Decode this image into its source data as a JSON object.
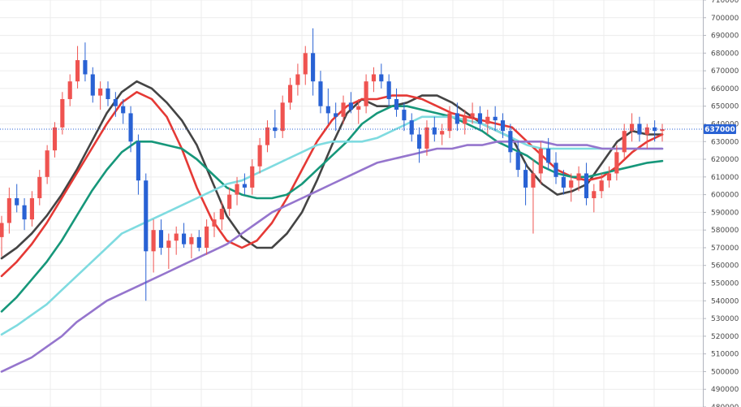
{
  "chart_data": {
    "type": "candlestick",
    "title": "",
    "xlabel": "",
    "ylabel": "",
    "ylim": [
      480000,
      710000
    ],
    "y_ticks": [
      480000,
      490000,
      500000,
      510000,
      520000,
      530000,
      540000,
      550000,
      560000,
      570000,
      580000,
      590000,
      600000,
      610000,
      620000,
      630000,
      640000,
      650000,
      660000,
      670000,
      680000,
      690000,
      700000,
      710000
    ],
    "y_tick_labels": [
      "480000",
      "490000",
      "500000",
      "510000",
      "520000",
      "530000",
      "540000",
      "550000",
      "560000",
      "570000",
      "580000",
      "590000",
      "600000",
      "610000",
      "620000",
      "630000",
      "640000",
      "650000",
      "660000",
      "670000",
      "680000",
      "690000",
      "700000",
      "710000"
    ],
    "grid": true,
    "last_price": 637000,
    "last_price_label": "637000",
    "colors": {
      "up": "#ef5350",
      "down": "#2962d4",
      "grid": "#ececec",
      "axis": "#b2b5be",
      "price_line": "#2962d4",
      "price_tag": "#2962d4"
    },
    "candles": [
      [
        576000,
        588000,
        565000,
        584000
      ],
      [
        584000,
        604000,
        578000,
        598000
      ],
      [
        598000,
        606000,
        590000,
        594000
      ],
      [
        594000,
        598000,
        580000,
        586000
      ],
      [
        586000,
        602000,
        582000,
        598000
      ],
      [
        598000,
        614000,
        594000,
        610000
      ],
      [
        610000,
        628000,
        606000,
        625000
      ],
      [
        625000,
        641000,
        621000,
        638000
      ],
      [
        638000,
        658000,
        634000,
        654000
      ],
      [
        654000,
        668000,
        650000,
        664000
      ],
      [
        664000,
        684000,
        660000,
        676000
      ],
      [
        676000,
        686000,
        664000,
        668000
      ],
      [
        668000,
        672000,
        652000,
        656000
      ],
      [
        656000,
        664000,
        648000,
        660000
      ],
      [
        660000,
        664000,
        650000,
        654000
      ],
      [
        654000,
        658000,
        644000,
        650000
      ],
      [
        650000,
        654000,
        640000,
        646000
      ],
      [
        646000,
        650000,
        624000,
        630000
      ],
      [
        630000,
        634000,
        600000,
        608000
      ],
      [
        608000,
        612000,
        540000,
        568000
      ],
      [
        568000,
        586000,
        556000,
        580000
      ],
      [
        580000,
        586000,
        566000,
        570000
      ],
      [
        570000,
        578000,
        558000,
        574000
      ],
      [
        574000,
        582000,
        566000,
        578000
      ],
      [
        578000,
        584000,
        570000,
        572000
      ],
      [
        572000,
        578000,
        564000,
        576000
      ],
      [
        576000,
        580000,
        568000,
        570000
      ],
      [
        570000,
        586000,
        566000,
        582000
      ],
      [
        582000,
        590000,
        576000,
        586000
      ],
      [
        586000,
        596000,
        580000,
        592000
      ],
      [
        592000,
        604000,
        588000,
        600000
      ],
      [
        600000,
        610000,
        594000,
        606000
      ],
      [
        606000,
        612000,
        600000,
        604000
      ],
      [
        604000,
        620000,
        600000,
        616000
      ],
      [
        616000,
        632000,
        612000,
        628000
      ],
      [
        628000,
        642000,
        624000,
        638000
      ],
      [
        638000,
        648000,
        632000,
        636000
      ],
      [
        636000,
        656000,
        632000,
        652000
      ],
      [
        652000,
        666000,
        648000,
        662000
      ],
      [
        662000,
        674000,
        656000,
        668000
      ],
      [
        668000,
        684000,
        662000,
        680000
      ],
      [
        680000,
        694000,
        656000,
        664000
      ],
      [
        664000,
        670000,
        646000,
        650000
      ],
      [
        650000,
        660000,
        640000,
        646000
      ],
      [
        646000,
        652000,
        636000,
        644000
      ],
      [
        644000,
        656000,
        640000,
        652000
      ],
      [
        652000,
        658000,
        646000,
        648000
      ],
      [
        648000,
        654000,
        640000,
        650000
      ],
      [
        650000,
        668000,
        646000,
        664000
      ],
      [
        664000,
        672000,
        658000,
        668000
      ],
      [
        668000,
        674000,
        660000,
        664000
      ],
      [
        664000,
        668000,
        650000,
        654000
      ],
      [
        654000,
        660000,
        644000,
        648000
      ],
      [
        648000,
        652000,
        636000,
        642000
      ],
      [
        642000,
        646000,
        630000,
        634000
      ],
      [
        634000,
        638000,
        618000,
        626000
      ],
      [
        626000,
        642000,
        622000,
        638000
      ],
      [
        638000,
        644000,
        630000,
        634000
      ],
      [
        634000,
        640000,
        628000,
        636000
      ],
      [
        636000,
        650000,
        632000,
        646000
      ],
      [
        646000,
        652000,
        636000,
        640000
      ],
      [
        640000,
        648000,
        634000,
        644000
      ],
      [
        644000,
        652000,
        640000,
        646000
      ],
      [
        646000,
        650000,
        636000,
        640000
      ],
      [
        640000,
        648000,
        634000,
        644000
      ],
      [
        644000,
        650000,
        636000,
        642000
      ],
      [
        642000,
        646000,
        632000,
        636000
      ],
      [
        636000,
        640000,
        618000,
        624000
      ],
      [
        624000,
        630000,
        610000,
        614000
      ],
      [
        614000,
        618000,
        594000,
        604000
      ],
      [
        604000,
        620000,
        578000,
        612000
      ],
      [
        612000,
        630000,
        606000,
        626000
      ],
      [
        626000,
        632000,
        614000,
        618000
      ],
      [
        618000,
        624000,
        606000,
        610000
      ],
      [
        610000,
        614000,
        600000,
        604000
      ],
      [
        604000,
        612000,
        596000,
        608000
      ],
      [
        608000,
        616000,
        602000,
        612000
      ],
      [
        612000,
        618000,
        594000,
        598000
      ],
      [
        598000,
        606000,
        590000,
        602000
      ],
      [
        602000,
        612000,
        598000,
        608000
      ],
      [
        608000,
        616000,
        604000,
        612000
      ],
      [
        612000,
        628000,
        608000,
        624000
      ],
      [
        624000,
        640000,
        620000,
        636000
      ],
      [
        636000,
        646000,
        630000,
        640000
      ],
      [
        640000,
        644000,
        630000,
        634000
      ],
      [
        634000,
        640000,
        626000,
        638000
      ],
      [
        638000,
        642000,
        630000,
        636000
      ],
      [
        636000,
        640000,
        630000,
        637000
      ]
    ],
    "series": [
      {
        "color": "#444444",
        "values": [
          564000,
          570000,
          578000,
          588000,
          600000,
          614000,
          630000,
          646000,
          658000,
          664000,
          660000,
          652000,
          642000,
          628000,
          608000,
          588000,
          576000,
          570000,
          570000,
          578000,
          590000,
          608000,
          628000,
          646000,
          654000,
          650000,
          650000,
          652000,
          656000,
          656000,
          652000,
          646000,
          640000,
          636000,
          632000,
          616000,
          606000,
          600000,
          602000,
          606000,
          618000,
          630000,
          636000,
          634000,
          634000
        ]
      },
      {
        "color": "#e53935",
        "values": [
          554000,
          562000,
          572000,
          584000,
          598000,
          612000,
          626000,
          640000,
          652000,
          658000,
          654000,
          644000,
          626000,
          604000,
          586000,
          574000,
          570000,
          574000,
          584000,
          598000,
          614000,
          630000,
          642000,
          650000,
          654000,
          654000,
          656000,
          656000,
          654000,
          650000,
          646000,
          644000,
          642000,
          640000,
          638000,
          630000,
          622000,
          614000,
          610000,
          608000,
          610000,
          616000,
          624000,
          630000,
          634000
        ]
      },
      {
        "color": "#16977a",
        "values": [
          534000,
          542000,
          552000,
          562000,
          574000,
          588000,
          602000,
          614000,
          624000,
          630000,
          630000,
          628000,
          626000,
          620000,
          612000,
          604000,
          600000,
          598000,
          598000,
          600000,
          606000,
          614000,
          622000,
          630000,
          640000,
          646000,
          650000,
          650000,
          648000,
          646000,
          644000,
          640000,
          636000,
          630000,
          626000,
          622000,
          616000,
          612000,
          610000,
          610000,
          612000,
          614000,
          616000,
          618000,
          619000
        ]
      },
      {
        "color": "#7fdbe0",
        "values": [
          521000,
          526000,
          532000,
          538000,
          546000,
          554000,
          562000,
          570000,
          578000,
          582000,
          586000,
          590000,
          594000,
          598000,
          602000,
          606000,
          608000,
          612000,
          616000,
          620000,
          624000,
          628000,
          630000,
          630000,
          630000,
          632000,
          636000,
          640000,
          644000,
          644000,
          644000,
          642000,
          640000,
          636000,
          632000,
          628000,
          626000,
          626000,
          626000,
          626000,
          626000,
          626000,
          626000,
          626000,
          626000
        ]
      },
      {
        "color": "#9575cd",
        "values": [
          500000,
          504000,
          508000,
          514000,
          520000,
          528000,
          534000,
          540000,
          544000,
          548000,
          552000,
          556000,
          560000,
          564000,
          568000,
          572000,
          578000,
          584000,
          590000,
          594000,
          598000,
          602000,
          606000,
          610000,
          614000,
          618000,
          620000,
          622000,
          624000,
          626000,
          626000,
          628000,
          628000,
          630000,
          630000,
          630000,
          630000,
          628000,
          628000,
          628000,
          626000,
          626000,
          626000,
          626000,
          626000
        ]
      }
    ]
  }
}
